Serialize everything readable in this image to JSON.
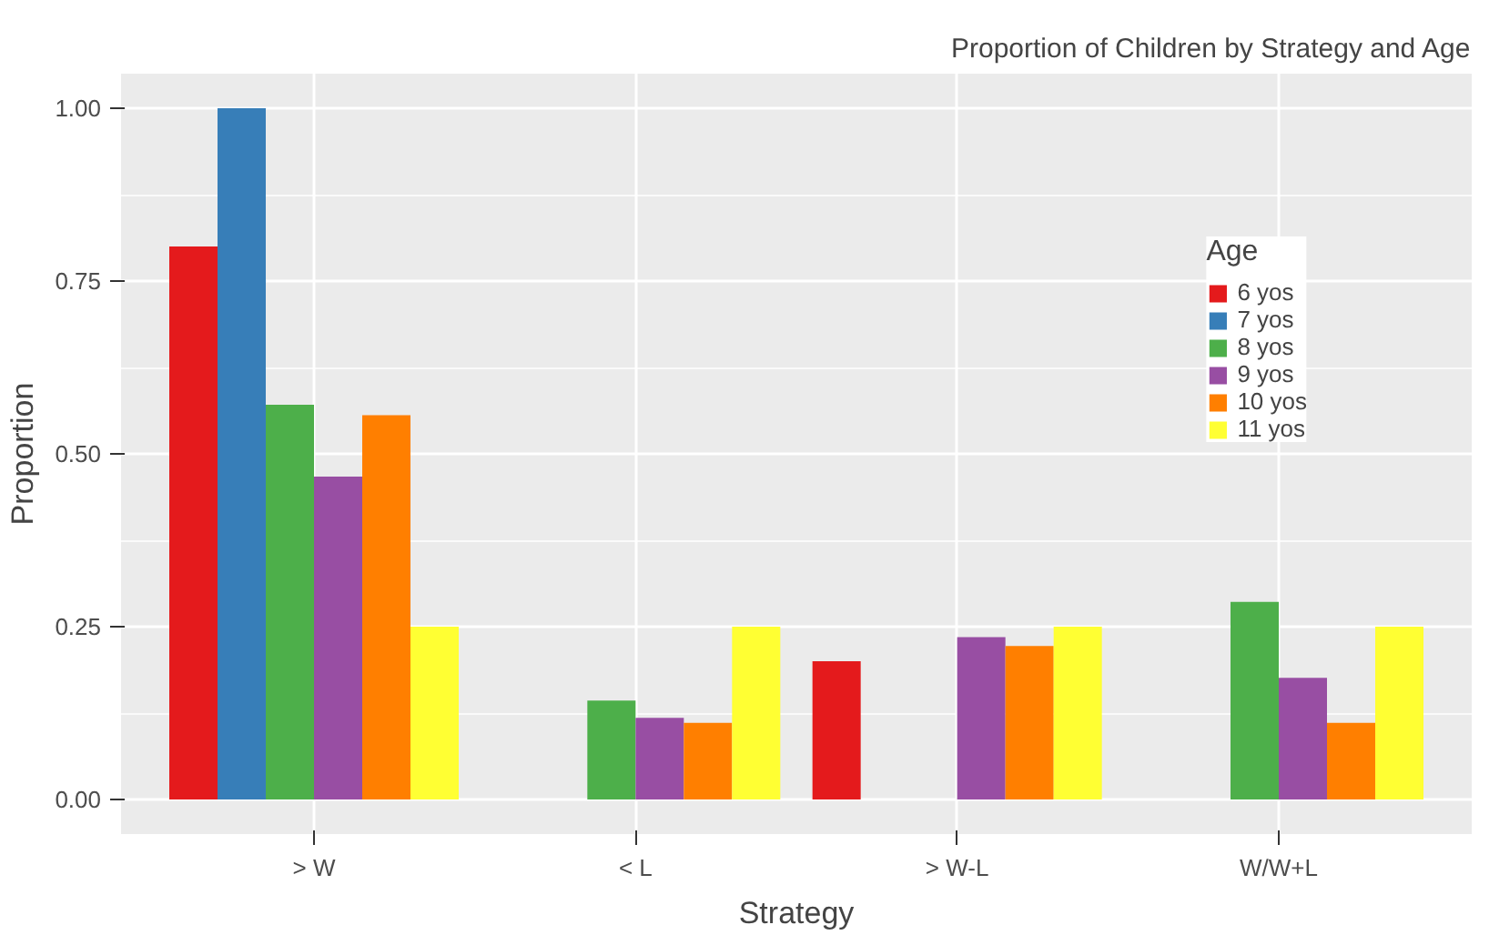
{
  "chart_data": {
    "type": "bar",
    "title": "Proportion of Children by Strategy and Age",
    "xlabel": "Strategy",
    "ylabel": "Proportion",
    "legend_title": "Age",
    "categories": [
      "> W",
      "< L",
      "> W-L",
      "W/W+L"
    ],
    "series": [
      {
        "name": "6 yos",
        "color": "#e41a1c",
        "values": [
          0.8,
          null,
          0.2,
          null
        ]
      },
      {
        "name": "7 yos",
        "color": "#377eb8",
        "values": [
          1.0,
          null,
          null,
          null
        ]
      },
      {
        "name": "8 yos",
        "color": "#4daf4a",
        "values": [
          0.571,
          0.143,
          null,
          0.286
        ]
      },
      {
        "name": "9 yos",
        "color": "#984ea3",
        "values": [
          0.467,
          0.118,
          0.235,
          0.176
        ]
      },
      {
        "name": "10 yos",
        "color": "#ff7f00",
        "values": [
          0.556,
          0.111,
          0.222,
          0.111
        ]
      },
      {
        "name": "11 yos",
        "color": "#ffff33",
        "values": [
          0.25,
          0.25,
          0.25,
          0.25
        ]
      }
    ],
    "ylim": [
      -0.05,
      1.05
    ],
    "yticks": [
      {
        "value": 0,
        "label": "0.00"
      },
      {
        "value": 0.25,
        "label": "0.25"
      },
      {
        "value": 0.5,
        "label": "0.50"
      },
      {
        "value": 0.75,
        "label": "0.75"
      },
      {
        "value": 1,
        "label": "1.00"
      }
    ],
    "grid": true,
    "legend": "top right"
  }
}
